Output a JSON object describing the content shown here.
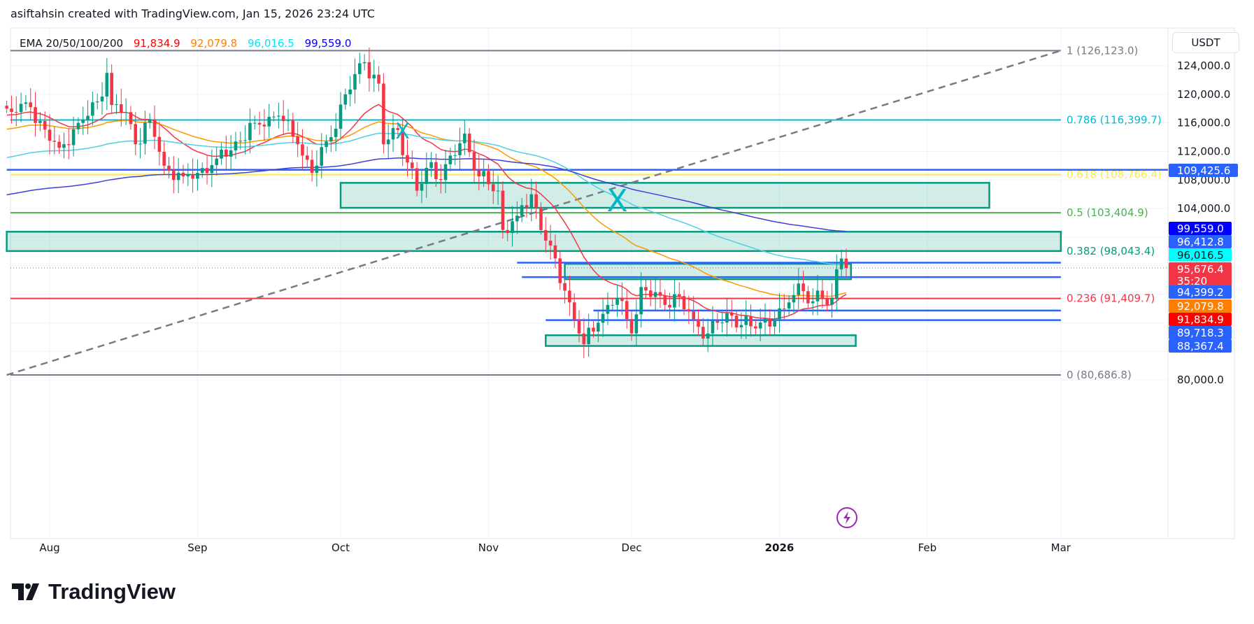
{
  "header": {
    "attribution": "asiftahsin created with TradingView.com, Jan 15, 2026 23:24 UTC"
  },
  "legend": {
    "label": "EMA 20/50/100/200",
    "values": [
      "91,834.9",
      "92,079.8",
      "96,016.5",
      "99,559.0"
    ],
    "colors": [
      "#ff0000",
      "#ff7f00",
      "#00e5ff",
      "#0000ff"
    ]
  },
  "currency": "USDT",
  "logo_text": "TradingView",
  "chart_data": {
    "type": "candlestick",
    "ylim": [
      75000,
      130000
    ],
    "y_ticks": [
      80000,
      104000,
      108000,
      112000,
      116000,
      120000,
      124000
    ],
    "y_tick_labels": [
      "80,000.0",
      "104,000.0",
      "108,000.0",
      "112,000.0",
      "116,000.0",
      "120,000.0",
      "124,000.0"
    ],
    "x_ticks": [
      {
        "date": "2025-08-01",
        "label": "Aug"
      },
      {
        "date": "2025-09-01",
        "label": "Sep"
      },
      {
        "date": "2025-10-01",
        "label": "Oct"
      },
      {
        "date": "2025-11-01",
        "label": "Nov"
      },
      {
        "date": "2025-12-01",
        "label": "Dec"
      },
      {
        "date": "2026-01-01",
        "label": "2026"
      },
      {
        "date": "2026-02-01",
        "label": "Feb"
      },
      {
        "date": "2026-03-01",
        "label": "Mar"
      }
    ],
    "x_range": [
      "2025-07-23",
      "2026-03-10"
    ],
    "grid": true,
    "colors": {
      "up": "#089981",
      "down": "#f23645"
    },
    "close_keypoints": [
      [
        "2025-07-23",
        118000
      ],
      [
        "2025-07-25",
        117500
      ],
      [
        "2025-07-28",
        118200
      ],
      [
        "2025-08-01",
        113500
      ],
      [
        "2025-08-03",
        112500
      ],
      [
        "2025-08-07",
        116000
      ],
      [
        "2025-08-09",
        117000
      ],
      [
        "2025-08-11",
        119000
      ],
      [
        "2025-08-13",
        123000
      ],
      [
        "2025-08-14",
        118500
      ],
      [
        "2025-08-17",
        117500
      ],
      [
        "2025-08-19",
        113000
      ],
      [
        "2025-08-22",
        116500
      ],
      [
        "2025-08-25",
        110000
      ],
      [
        "2025-08-29",
        108500
      ],
      [
        "2025-09-01",
        109000
      ],
      [
        "2025-09-05",
        111000
      ],
      [
        "2025-09-10",
        113500
      ],
      [
        "2025-09-13",
        116000
      ],
      [
        "2025-09-18",
        117000
      ],
      [
        "2025-09-22",
        113000
      ],
      [
        "2025-09-25",
        109000
      ],
      [
        "2025-09-29",
        114000
      ],
      [
        "2025-10-02",
        120000
      ],
      [
        "2025-10-06",
        124500
      ],
      [
        "2025-10-09",
        121500
      ],
      [
        "2025-10-10",
        113000
      ],
      [
        "2025-10-13",
        115000
      ],
      [
        "2025-10-17",
        106500
      ],
      [
        "2025-10-20",
        110500
      ],
      [
        "2025-10-22",
        108000
      ],
      [
        "2025-10-27",
        114500
      ],
      [
        "2025-10-30",
        108500
      ],
      [
        "2025-11-03",
        106500
      ],
      [
        "2025-11-04",
        101000
      ],
      [
        "2025-11-07",
        103000
      ],
      [
        "2025-11-10",
        106000
      ],
      [
        "2025-11-13",
        99500
      ],
      [
        "2025-11-17",
        92500
      ],
      [
        "2025-11-20",
        86500
      ],
      [
        "2025-11-21",
        85000
      ],
      [
        "2025-11-24",
        88000
      ],
      [
        "2025-11-26",
        90500
      ],
      [
        "2025-11-28",
        91500
      ],
      [
        "2025-12-01",
        86500
      ],
      [
        "2025-12-03",
        93000
      ],
      [
        "2025-12-08",
        90500
      ],
      [
        "2025-12-10",
        92000
      ],
      [
        "2025-12-14",
        88500
      ],
      [
        "2025-12-17",
        86500
      ],
      [
        "2025-12-19",
        88000
      ],
      [
        "2025-12-22",
        89000
      ],
      [
        "2025-12-26",
        87500
      ],
      [
        "2025-12-31",
        88500
      ],
      [
        "2026-01-02",
        90000
      ],
      [
        "2026-01-05",
        93500
      ],
      [
        "2026-01-08",
        91000
      ],
      [
        "2026-01-12",
        91500
      ],
      [
        "2026-01-13",
        95500
      ],
      [
        "2026-01-14",
        97000
      ],
      [
        "2026-01-15",
        95676.4
      ]
    ],
    "ema_series": [
      {
        "name": "EMA 20",
        "period": 20,
        "color": "#f23645",
        "last": 91834.9
      },
      {
        "name": "EMA 50",
        "period": 50,
        "color": "#ff9800",
        "last": 92079.8
      },
      {
        "name": "EMA 100",
        "period": 100,
        "color": "#4dd0e1",
        "last": 96016.5
      },
      {
        "name": "EMA 200",
        "period": 200,
        "color": "#3f3fd8",
        "last": 99559.0
      }
    ],
    "fib_levels": [
      {
        "ratio": "1",
        "price": 126123.0,
        "label": "1 (126,123.0)",
        "color": "#787b86"
      },
      {
        "ratio": "0.786",
        "price": 116399.7,
        "label": "0.786 (116,399.7)",
        "color": "#00bcd4"
      },
      {
        "ratio": "0.618",
        "price": 108766.4,
        "label": "0.618 (108,766.4)",
        "color": "#ffeb3b"
      },
      {
        "ratio": "0.5",
        "price": 103404.9,
        "label": "0.5 (103,404.9)",
        "color": "#4caf50"
      },
      {
        "ratio": "0.382",
        "price": 98043.4,
        "label": "0.382 (98,043.4)",
        "color": "#089981"
      },
      {
        "ratio": "0.236",
        "price": 91409.7,
        "label": "0.236 (91,409.7)",
        "color": "#f23645"
      },
      {
        "ratio": "0",
        "price": 80686.8,
        "label": "0 (80,686.8)",
        "color": "#787b86"
      }
    ],
    "fib_trendline": {
      "from": [
        "2025-07-23",
        80686.8
      ],
      "to": [
        "2026-03-01",
        126123.0
      ]
    },
    "horizontal_lines": [
      {
        "price": 109425.6,
        "from": "2025-07-23",
        "color": "#2962ff"
      },
      {
        "price": 96412.8,
        "from": "2025-11-07",
        "color": "#2962ff"
      },
      {
        "price": 94399.2,
        "from": "2025-11-08",
        "color": "#2962ff"
      },
      {
        "price": 89718.3,
        "from": "2025-11-23",
        "color": "#2962ff"
      },
      {
        "price": 88367.4,
        "from": "2025-11-13",
        "color": "#2962ff"
      }
    ],
    "zones": [
      {
        "from": "2025-10-01",
        "to": "2026-02-14",
        "top": 107600,
        "bottom": 104100
      },
      {
        "from": "2025-07-23",
        "to": "2026-03-01",
        "top": 100750,
        "bottom": 98043.4
      },
      {
        "from": "2025-11-17",
        "to": "2026-01-16",
        "top": 96250,
        "bottom": 94100
      },
      {
        "from": "2025-11-13",
        "to": "2026-01-17",
        "top": 86250,
        "bottom": 84750
      }
    ],
    "markers": [
      {
        "date": "2025-10-14",
        "price": 115000,
        "symbol": "X"
      },
      {
        "date": "2025-11-28",
        "price": 104800,
        "symbol": "X"
      }
    ],
    "axis_labels": [
      {
        "text": "109,425.6",
        "price": 109425.6,
        "bg": "#2962ff",
        "fg": "#ffffff"
      },
      {
        "text": "99,559.0",
        "price": 99559.0,
        "bg": "#0000ff",
        "fg": "#ffffff"
      },
      {
        "text": "96,412.8",
        "price": 96412.8,
        "bg": "#2962ff",
        "fg": "#ffffff"
      },
      {
        "text": "96,016.5",
        "price": 96016.5,
        "bg": "#00ffff",
        "fg": "#131722"
      },
      {
        "text": "95,676.4",
        "price": 95676.4,
        "bg": "#f23645",
        "fg": "#ffffff",
        "sub": "35:20"
      },
      {
        "text": "94,399.2",
        "price": 94399.2,
        "bg": "#2962ff",
        "fg": "#ffffff"
      },
      {
        "text": "92,079.8",
        "price": 92079.8,
        "bg": "#ff7f00",
        "fg": "#ffffff"
      },
      {
        "text": "91,834.9",
        "price": 91834.9,
        "bg": "#ff0000",
        "fg": "#ffffff"
      },
      {
        "text": "89,718.3",
        "price": 89718.3,
        "bg": "#2962ff",
        "fg": "#ffffff"
      },
      {
        "text": "88,367.4",
        "price": 88367.4,
        "bg": "#2962ff",
        "fg": "#ffffff"
      }
    ],
    "current_price": 95676.4,
    "icons": {
      "event": "lightning-icon"
    }
  }
}
